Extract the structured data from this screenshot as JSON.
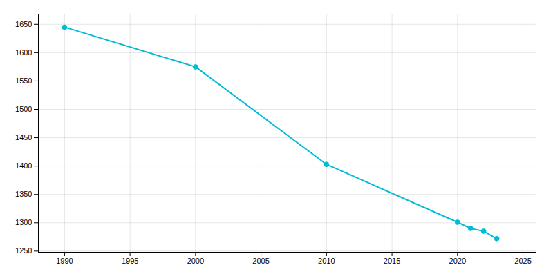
{
  "chart_data": {
    "type": "line",
    "x": [
      1990,
      2000,
      2010,
      2020,
      2021,
      2022,
      2023
    ],
    "values": [
      1645,
      1575,
      1403,
      1301,
      1290,
      1285,
      1272
    ],
    "color": "#00BCD4",
    "marker": "circle",
    "xlim": [
      1988,
      2026
    ],
    "ylim": [
      1248,
      1668
    ],
    "xticks": [
      1990,
      1995,
      2000,
      2005,
      2010,
      2015,
      2020,
      2025
    ],
    "yticks": [
      1250,
      1300,
      1350,
      1400,
      1450,
      1500,
      1550,
      1600,
      1650
    ],
    "grid": true
  }
}
